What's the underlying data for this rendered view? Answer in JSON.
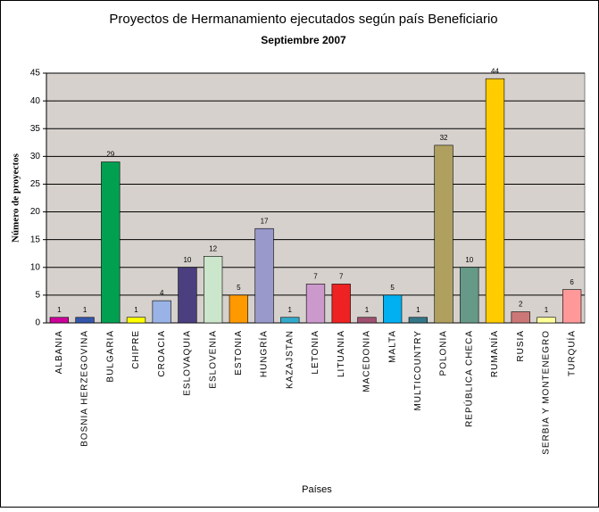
{
  "chart_data": {
    "type": "bar",
    "title": "Proyectos de Hermanamiento ejecutados según país Beneficiario",
    "subtitle": "Septiembre 2007",
    "y_label": "Número de proyectos",
    "x_label": "Países",
    "categories": [
      "ALBANIA",
      "BOSNIA HERZEGOVINA",
      "BULGARIA",
      "CHIPRE",
      "CROACIA",
      "ESLOVAQUIA",
      "ESLOVENIA",
      "ESTONIA",
      "HUNGRÍA",
      "KAZAJSTAN",
      "LETONIA",
      "LITUANIA",
      "MACEDONIA",
      "MALTA",
      "MULTICOUNTRY",
      "POLONIA",
      "REPÚBLICA CHECA",
      "RUMANÍA",
      "RUSIA",
      "SERBIA Y MONTENEGRO",
      "TURQUÍA"
    ],
    "values": [
      1,
      1,
      29,
      1,
      4,
      10,
      12,
      5,
      17,
      1,
      7,
      7,
      1,
      5,
      1,
      32,
      10,
      44,
      2,
      1,
      6
    ],
    "colors": [
      "#cc0099",
      "#3355aa",
      "#00a050",
      "#ffff00",
      "#99b3e6",
      "#4b3f80",
      "#cce6cc",
      "#ff9900",
      "#9999cc",
      "#33aacc",
      "#cc99cc",
      "#ee2222",
      "#a05070",
      "#00b0f0",
      "#337788",
      "#b0a060",
      "#669988",
      "#ffcc00",
      "#cc7777",
      "#ffff99",
      "#ff9999"
    ],
    "ylim": [
      0,
      45
    ],
    "yticks": [
      0,
      5,
      10,
      15,
      20,
      25,
      30,
      35,
      40,
      45
    ],
    "grid": true
  }
}
